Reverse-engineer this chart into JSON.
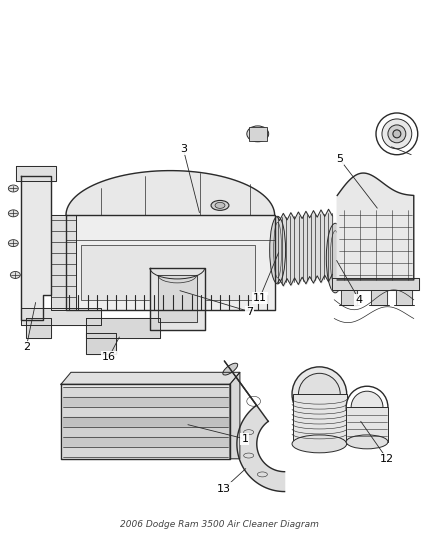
{
  "title": "2006 Dodge Ram 3500 Air Cleaner Diagram",
  "background_color": "#ffffff",
  "line_color": "#2a2a2a",
  "label_color": "#000000",
  "fig_width": 4.38,
  "fig_height": 5.33,
  "dpi": 100
}
